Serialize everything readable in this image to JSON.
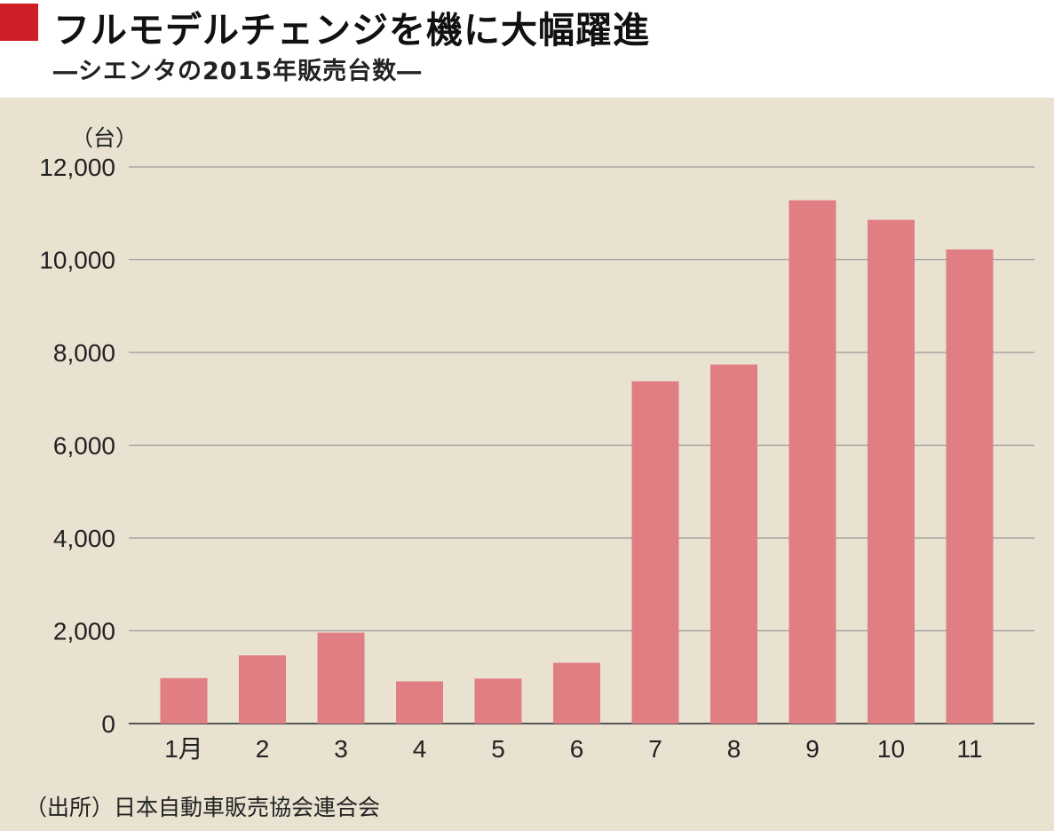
{
  "colors": {
    "background_panel": "#e9e2d1",
    "accent_red": "#cf1f26",
    "bar": "#e07e84",
    "gridline": "#9a9a9a",
    "text": "#222222"
  },
  "header": {
    "title": "フルモデルチェンジを機に大幅躍進",
    "subtitle": "―シエンタの2015年販売台数―"
  },
  "source": "（出所）日本自動車販売協会連合会",
  "chart_data": {
    "type": "bar",
    "title": "フルモデルチェンジを機に大幅躍進",
    "subtitle": "―シエンタの2015年販売台数―",
    "ylabel": "（台）",
    "xlabel": "",
    "categories": [
      "1月",
      "2",
      "3",
      "4",
      "5",
      "6",
      "7",
      "8",
      "9",
      "10",
      "11"
    ],
    "values": [
      980,
      1470,
      1960,
      910,
      970,
      1310,
      7380,
      7740,
      11280,
      10860,
      10220
    ],
    "ylim": [
      0,
      12000
    ],
    "yticks": [
      0,
      2000,
      4000,
      6000,
      8000,
      10000,
      12000
    ],
    "ytick_labels": [
      "0",
      "2,000",
      "4,000",
      "6,000",
      "8,000",
      "10,000",
      "12,000"
    ],
    "grid": true,
    "legend": "none"
  }
}
